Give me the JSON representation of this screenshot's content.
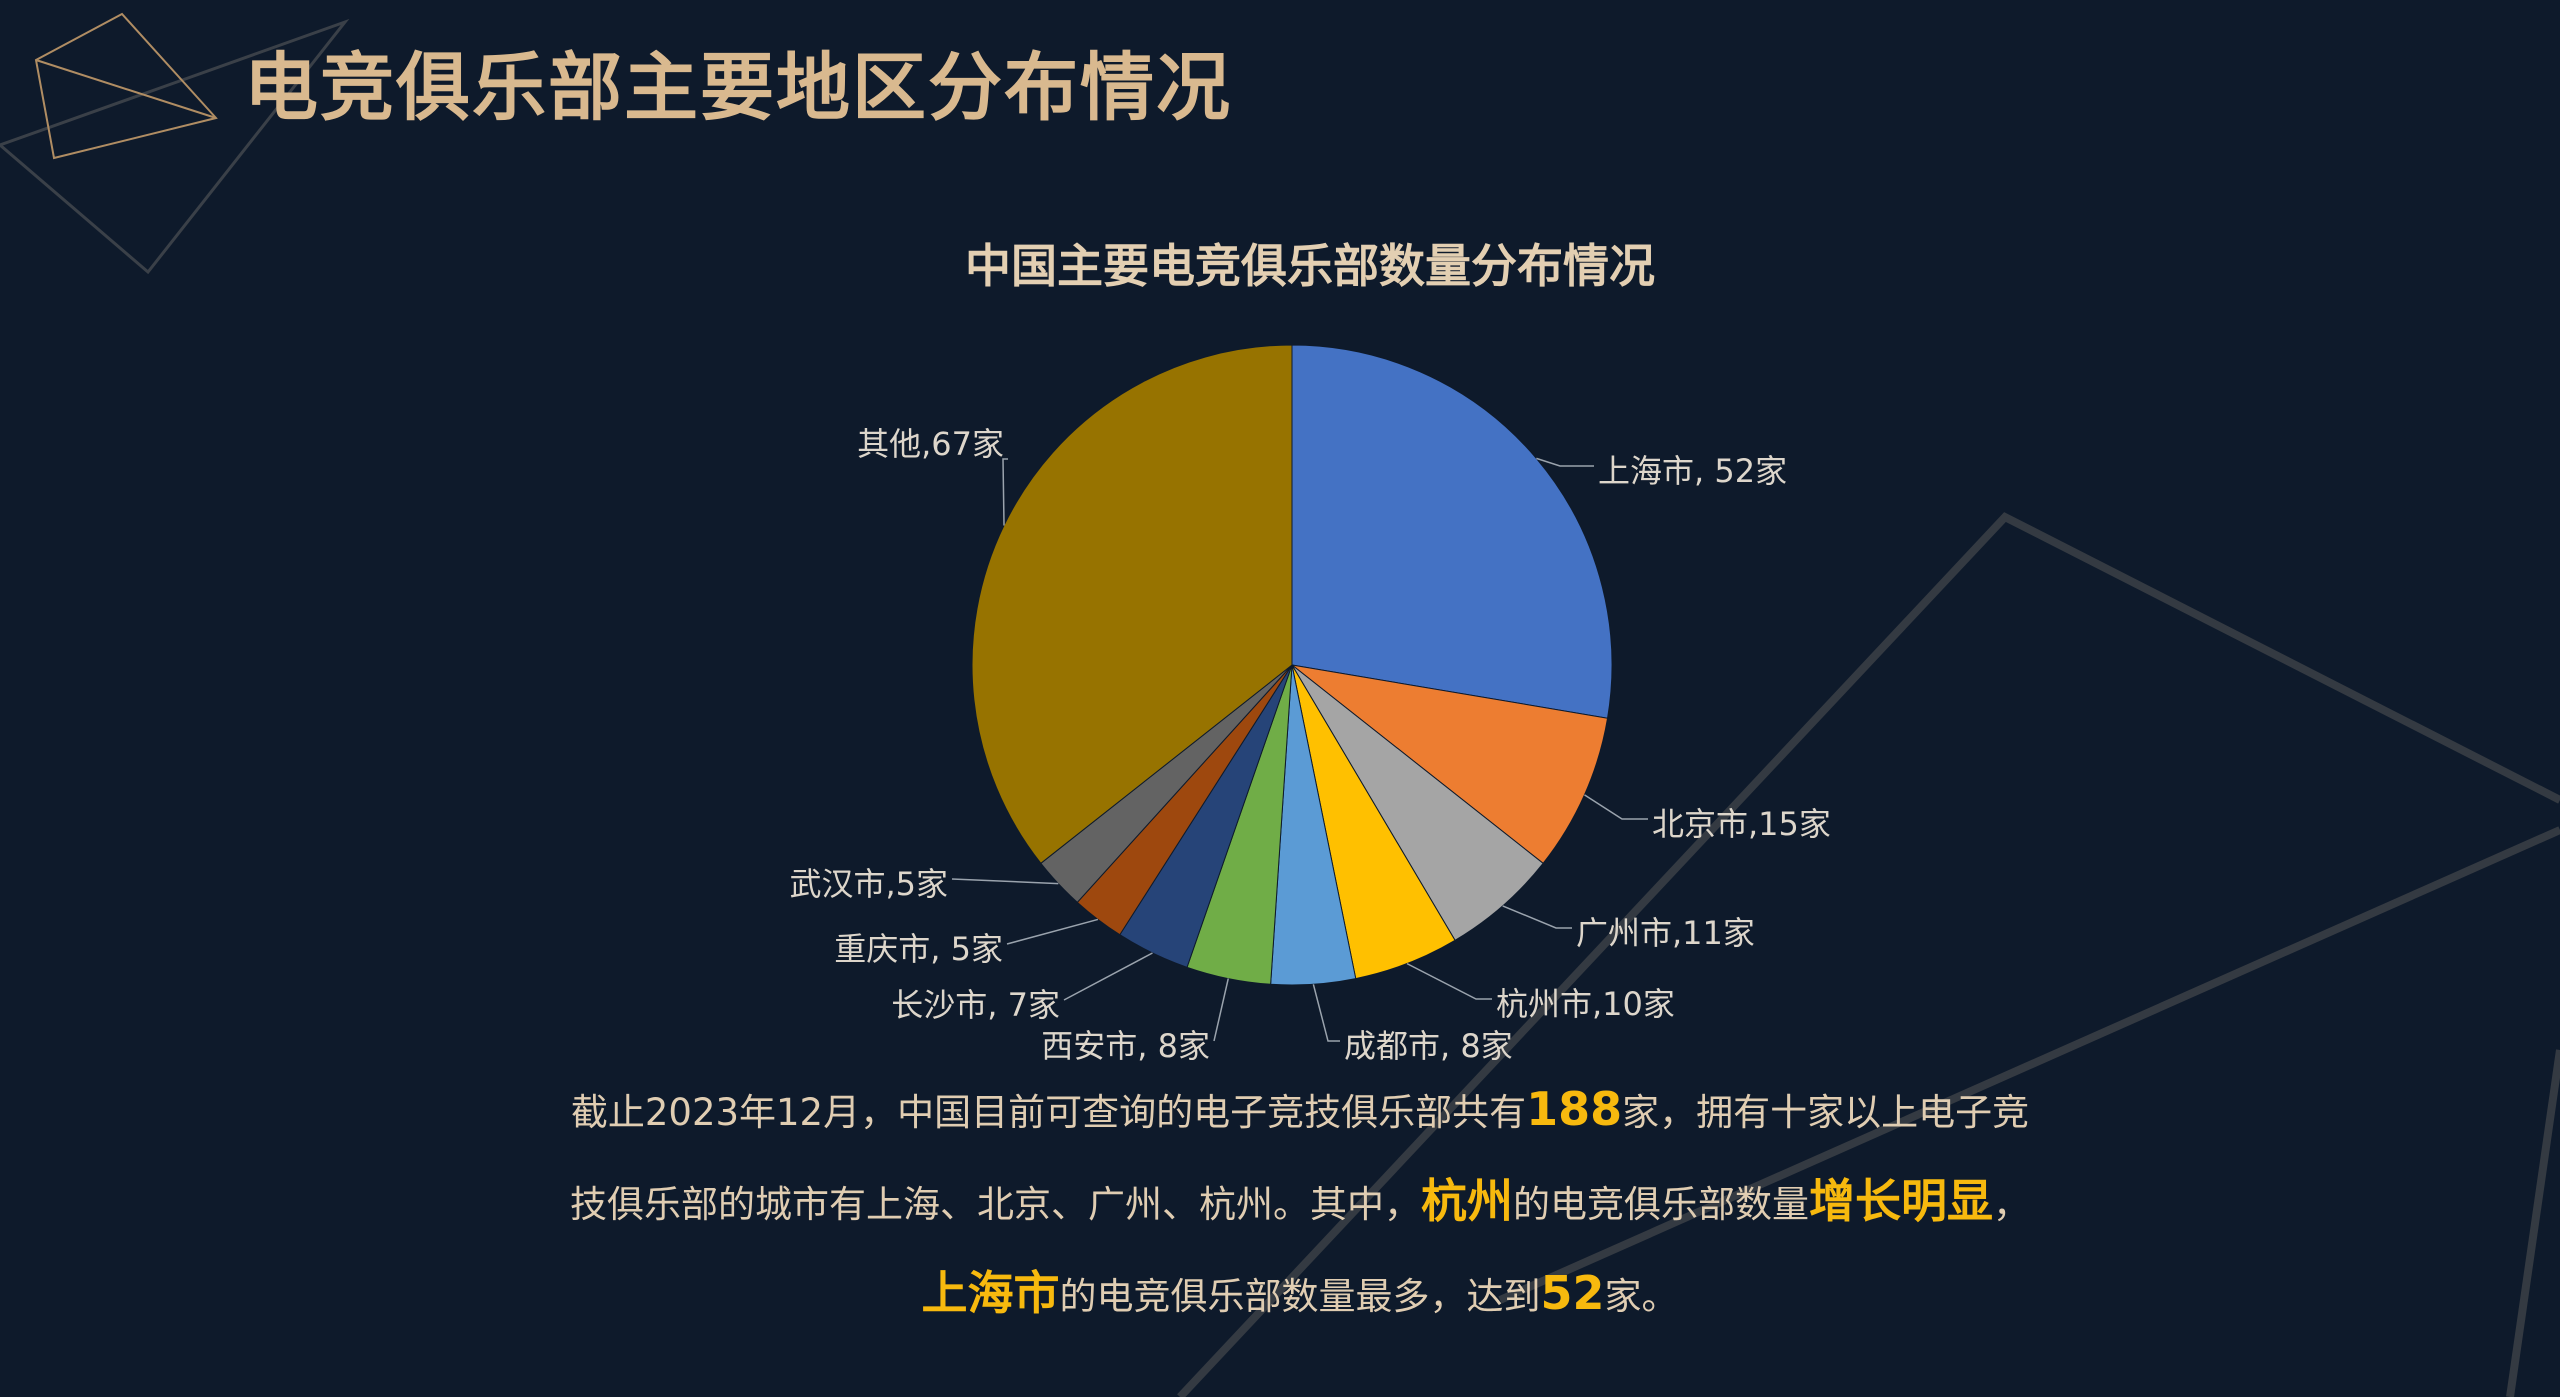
{
  "page": {
    "title": "电竞俱乐部主要地区分布情况"
  },
  "colors": {
    "background": "#0e1a2b",
    "title": "#d9b98f",
    "text": "#e0cdb2",
    "highlight": "#f7b90e",
    "label_text": "#ddd6cb",
    "leader_line": "#9aa3ad"
  },
  "chart_data": {
    "type": "pie",
    "title": "中国主要电竞俱乐部数量分布情况",
    "slices": [
      {
        "name": "上海市",
        "value": 52,
        "label": "上海市, 52家",
        "color": "#4472c4"
      },
      {
        "name": "北京市",
        "value": 15,
        "label": "北京市,15家",
        "color": "#ed7d31"
      },
      {
        "name": "广州市",
        "value": 11,
        "label": "广州市,11家",
        "color": "#a5a5a5"
      },
      {
        "name": "杭州市",
        "value": 10,
        "label": "杭州市,10家",
        "color": "#ffc000"
      },
      {
        "name": "成都市",
        "value": 8,
        "label": "成都市, 8家",
        "color": "#5b9bd5"
      },
      {
        "name": "西安市",
        "value": 8,
        "label": "西安市, 8家",
        "color": "#70ad47"
      },
      {
        "name": "长沙市",
        "value": 7,
        "label": "长沙市, 7家",
        "color": "#264478"
      },
      {
        "name": "重庆市",
        "value": 5,
        "label": "重庆市, 5家",
        "color": "#9e480e"
      },
      {
        "name": "武汉市",
        "value": 5,
        "label": "武汉市,5家",
        "color": "#636363"
      },
      {
        "name": "其他",
        "value": 67,
        "label": "其他,67家",
        "color": "#977300"
      }
    ]
  },
  "summary": {
    "line1": {
      "a": "截止2023年12月，中国目前可查询的电子竞技俱乐部共有",
      "b": "188",
      "c": "家，拥有十家以上电子竞"
    },
    "line2": {
      "a": "技俱乐部的城市有上海、北京、广州、杭州。其中，",
      "b": "杭州",
      "c": "的电竞俱乐部数量",
      "d": "增长明显",
      "e": "，"
    },
    "line3": {
      "a": "上海市",
      "b": "的电竞俱乐部数量最多，达到",
      "c": "52",
      "d": "家。"
    }
  }
}
